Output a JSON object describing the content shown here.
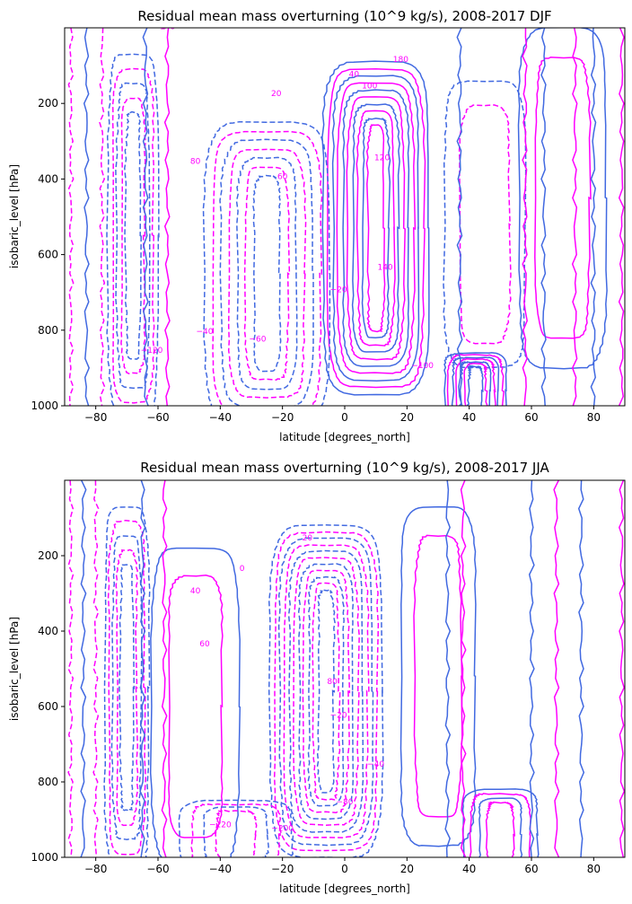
{
  "colors": {
    "positive_line": "#ff00ff",
    "negative_line": "#ff00ff",
    "zero_and_mid_line": "#4169e1",
    "axes": "#000000",
    "background": "#ffffff"
  },
  "chart_data": [
    {
      "type": "contour",
      "title": "Residual mean mass overturning (10^9 kg/s), 2008-2017 DJF",
      "xlabel": "latitude [degrees_north]",
      "ylabel": "isobaric_level [hPa]",
      "xlim": [
        -90,
        90
      ],
      "ylim": [
        1000,
        0
      ],
      "y_inverted": true,
      "grid": false,
      "x_ticks": [
        -80,
        -60,
        -40,
        -20,
        0,
        20,
        40,
        60,
        80
      ],
      "y_ticks": [
        200,
        400,
        600,
        800,
        1000
      ],
      "x_tick_labels": [
        "−80",
        "−60",
        "−40",
        "−20",
        "0",
        "20",
        "40",
        "60",
        "80"
      ],
      "y_tick_labels": [
        "200",
        "400",
        "600",
        "800",
        "1000"
      ],
      "line_styles": "negative values dashed, positive values solid",
      "contour_labels": [
        "0",
        "20",
        "40",
        "60",
        "80",
        "100",
        "120",
        "140",
        "180",
        "−20",
        "−40",
        "−60",
        "−100",
        "−120",
        "−140"
      ],
      "cells": [
        {
          "center_lat": 10,
          "center_p": 530,
          "half_width_lat": 17,
          "half_height_p": 440,
          "peak": 200,
          "sign": "positive"
        },
        {
          "center_lat": -25,
          "center_p": 650,
          "half_width_lat": 20,
          "half_height_p": 400,
          "peak": -140,
          "sign": "negative"
        },
        {
          "center_lat": -68,
          "center_p": 550,
          "half_width_lat": 8,
          "half_height_p": 480,
          "peak": -100,
          "sign": "negative"
        },
        {
          "center_lat": 45,
          "center_p": 520,
          "half_width_lat": 13,
          "half_height_p": 380,
          "peak": -40,
          "sign": "negative"
        },
        {
          "center_lat": 42,
          "center_p": 960,
          "half_width_lat": 10,
          "half_height_p": 100,
          "peak": 140,
          "sign": "positive"
        },
        {
          "center_lat": 70,
          "center_p": 450,
          "half_width_lat": 14,
          "half_height_p": 450,
          "peak": 40,
          "sign": "positive"
        }
      ]
    },
    {
      "type": "contour",
      "title": "Residual mean mass overturning (10^9 kg/s), 2008-2017 JJA",
      "xlabel": "latitude [degrees_north]",
      "ylabel": "isobaric_level [hPa]",
      "xlim": [
        -90,
        90
      ],
      "ylim": [
        1000,
        0
      ],
      "y_inverted": true,
      "grid": false,
      "x_ticks": [
        -80,
        -60,
        -40,
        -20,
        0,
        20,
        40,
        60,
        80
      ],
      "y_ticks": [
        200,
        400,
        600,
        800,
        1000
      ],
      "x_tick_labels": [
        "−80",
        "−60",
        "−40",
        "−20",
        "0",
        "20",
        "40",
        "60",
        "80"
      ],
      "y_tick_labels": [
        "200",
        "400",
        "600",
        "800",
        "1000"
      ],
      "line_styles": "negative values dashed, positive values solid",
      "contour_labels": [
        "0",
        "20",
        "40",
        "60",
        "80",
        "−20",
        "−40",
        "−80",
        "−120",
        "−200"
      ],
      "cells": [
        {
          "center_lat": -6,
          "center_p": 560,
          "half_width_lat": 18,
          "half_height_p": 440,
          "peak": -220,
          "sign": "negative"
        },
        {
          "center_lat": -48,
          "center_p": 600,
          "half_width_lat": 14,
          "half_height_p": 420,
          "peak": 40,
          "sign": "positive"
        },
        {
          "center_lat": -70,
          "center_p": 550,
          "half_width_lat": 7,
          "half_height_p": 480,
          "peak": -100,
          "sign": "negative"
        },
        {
          "center_lat": 30,
          "center_p": 520,
          "half_width_lat": 12,
          "half_height_p": 450,
          "peak": 20,
          "sign": "positive"
        },
        {
          "center_lat": 50,
          "center_p": 940,
          "half_width_lat": 12,
          "half_height_p": 120,
          "peak": 80,
          "sign": "positive"
        },
        {
          "center_lat": -35,
          "center_p": 940,
          "half_width_lat": 18,
          "half_height_p": 90,
          "peak": -80,
          "sign": "negative"
        }
      ]
    }
  ]
}
